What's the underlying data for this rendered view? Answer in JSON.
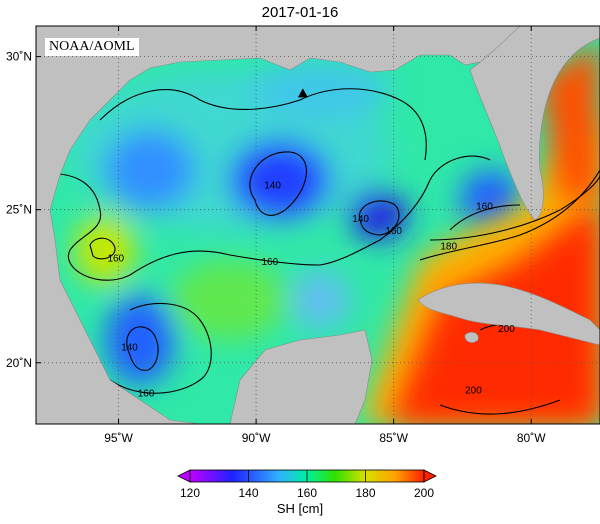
{
  "title": "2017-01-16",
  "credit": "NOAA/AOML",
  "map": {
    "lon_range": [
      -98.0,
      -77.5
    ],
    "lat_range": [
      18.0,
      31.0
    ],
    "lon_ticks": [
      {
        "lon": -95,
        "label": "95˚W"
      },
      {
        "lon": -90,
        "label": "90˚W"
      },
      {
        "lon": -85,
        "label": "85˚W"
      },
      {
        "lon": -80,
        "label": "80˚W"
      }
    ],
    "lat_ticks": [
      {
        "lat": 30,
        "label": "30˚N"
      },
      {
        "lat": 25,
        "label": "25˚N"
      },
      {
        "lat": 20,
        "label": "20˚N"
      }
    ],
    "marker": {
      "lon": -88.3,
      "lat": 28.8,
      "symbol": "triangle"
    },
    "contour_labels": [
      {
        "text": "140",
        "lon": -89.4,
        "lat": 25.7
      },
      {
        "text": "140",
        "lon": -86.2,
        "lat": 24.6
      },
      {
        "text": "140",
        "lon": -94.6,
        "lat": 20.4
      },
      {
        "text": "160",
        "lon": -95.1,
        "lat": 23.3
      },
      {
        "text": "160",
        "lon": -89.5,
        "lat": 23.2
      },
      {
        "text": "160",
        "lon": -85.0,
        "lat": 24.2
      },
      {
        "text": "160",
        "lon": -94.0,
        "lat": 18.9
      },
      {
        "text": "160",
        "lon": -81.7,
        "lat": 25.0
      },
      {
        "text": "180",
        "lon": -83.0,
        "lat": 23.7
      },
      {
        "text": "200",
        "lon": -80.9,
        "lat": 21.0
      },
      {
        "text": "200",
        "lon": -82.1,
        "lat": 19.0
      }
    ]
  },
  "colorbar": {
    "variable": "SH [cm]",
    "min": 120,
    "max": 200,
    "ticks": [
      "120",
      "140",
      "160",
      "180",
      "200"
    ],
    "colors": [
      "#c000ff",
      "#2020ff",
      "#30b0ff",
      "#00f0a0",
      "#30e000",
      "#d8e000",
      "#ffa000",
      "#ff2000"
    ]
  },
  "land_color": "#c0c0c0",
  "contour_color": "#000000"
}
